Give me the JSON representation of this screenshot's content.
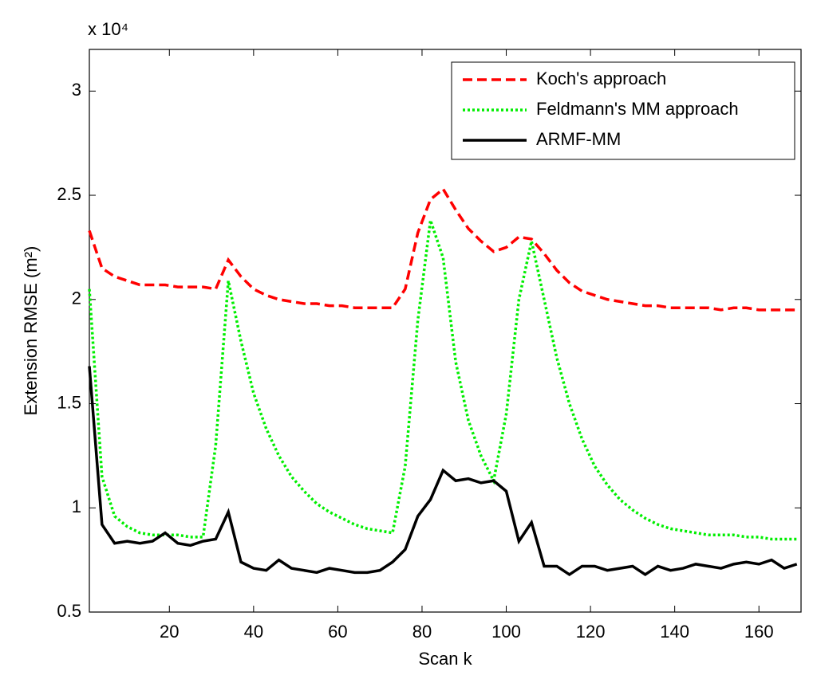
{
  "chart_data": {
    "type": "line",
    "y_scale_label": "x 10⁴",
    "x_label": "Scan k",
    "y_label": "Extension RMSE (m²)",
    "x": [
      1,
      4,
      7,
      10,
      13,
      16,
      19,
      22,
      25,
      28,
      31,
      34,
      37,
      40,
      43,
      46,
      49,
      52,
      55,
      58,
      61,
      64,
      67,
      70,
      73,
      76,
      79,
      82,
      85,
      88,
      91,
      94,
      97,
      100,
      103,
      106,
      109,
      112,
      115,
      118,
      121,
      124,
      127,
      130,
      133,
      136,
      139,
      142,
      145,
      148,
      151,
      154,
      157,
      160,
      163,
      166,
      169
    ],
    "series": [
      {
        "name": "Koch's approach",
        "color": "#ff0000",
        "dash": "dashed",
        "values": [
          2.33,
          2.15,
          2.11,
          2.09,
          2.07,
          2.07,
          2.07,
          2.06,
          2.06,
          2.06,
          2.05,
          2.19,
          2.11,
          2.05,
          2.02,
          2.0,
          1.99,
          1.98,
          1.98,
          1.97,
          1.97,
          1.96,
          1.96,
          1.96,
          1.96,
          2.05,
          2.32,
          2.48,
          2.53,
          2.43,
          2.34,
          2.28,
          2.23,
          2.25,
          2.3,
          2.29,
          2.22,
          2.14,
          2.08,
          2.04,
          2.02,
          2.0,
          1.99,
          1.98,
          1.97,
          1.97,
          1.96,
          1.96,
          1.96,
          1.96,
          1.95,
          1.96,
          1.96,
          1.95,
          1.95,
          1.95,
          1.95
        ]
      },
      {
        "name": "Feldmann's MM approach",
        "color": "#00ee00",
        "dash": "dotted",
        "values": [
          2.05,
          1.15,
          0.96,
          0.91,
          0.88,
          0.87,
          0.87,
          0.87,
          0.86,
          0.86,
          1.3,
          2.09,
          1.8,
          1.55,
          1.38,
          1.25,
          1.15,
          1.08,
          1.02,
          0.98,
          0.95,
          0.92,
          0.9,
          0.89,
          0.88,
          1.2,
          1.9,
          2.38,
          2.2,
          1.7,
          1.42,
          1.25,
          1.13,
          1.45,
          2.0,
          2.28,
          2.0,
          1.72,
          1.5,
          1.33,
          1.2,
          1.11,
          1.04,
          0.99,
          0.95,
          0.92,
          0.9,
          0.89,
          0.88,
          0.87,
          0.87,
          0.87,
          0.86,
          0.86,
          0.85,
          0.85,
          0.85
        ]
      },
      {
        "name": "ARMF-MM",
        "color": "#000000",
        "dash": "solid",
        "values": [
          1.68,
          0.92,
          0.83,
          0.84,
          0.83,
          0.84,
          0.88,
          0.83,
          0.82,
          0.84,
          0.85,
          0.98,
          0.74,
          0.71,
          0.7,
          0.75,
          0.71,
          0.7,
          0.69,
          0.71,
          0.7,
          0.69,
          0.69,
          0.7,
          0.74,
          0.8,
          0.96,
          1.04,
          1.18,
          1.13,
          1.14,
          1.12,
          1.13,
          1.08,
          0.84,
          0.93,
          0.72,
          0.72,
          0.68,
          0.72,
          0.72,
          0.7,
          0.71,
          0.72,
          0.68,
          0.72,
          0.7,
          0.71,
          0.73,
          0.72,
          0.71,
          0.73,
          0.74,
          0.73,
          0.75,
          0.71,
          0.73
        ]
      }
    ],
    "xlim": [
      1,
      170
    ],
    "xticks": [
      20,
      40,
      60,
      80,
      100,
      120,
      140,
      160
    ],
    "ylim": [
      0.5,
      3.2
    ],
    "yticks": [
      0.5,
      1,
      1.5,
      2,
      2.5,
      3
    ],
    "grid": false,
    "legend": "top-right"
  }
}
